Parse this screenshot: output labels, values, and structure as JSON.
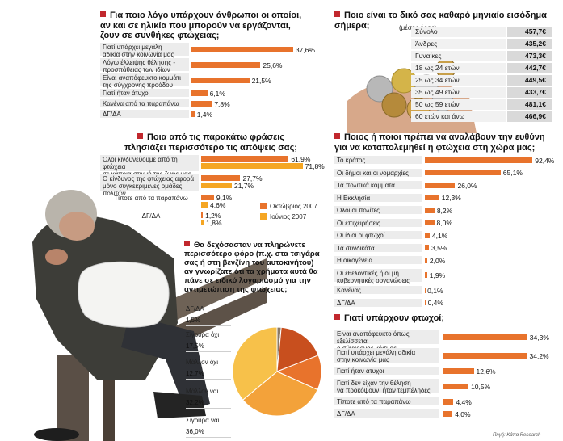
{
  "chart_data": [
    {
      "type": "bar",
      "title": "Για ποιο λόγο υπάρχουν άνθρωποι οι οποίοι,\nαν και σε ηλικία που μπορούν να εργάζονται,\nζουν σε συνθήκες φτώχειας;",
      "categories": [
        "Γιατί υπάρχει μεγάλη\nαδικία στην κοινωνία μας",
        "Λόγω έλλειψης θέλησης -\nπροσπάθειας των ιδίων",
        "Είναι αναπόφευκτο κομμάτι\nτης σύγχρονης προόδου",
        "Γιατί ήταν άτυχοι",
        "Κανένα από τα παραπάνω",
        "ΔΓ/ΔΑ"
      ],
      "values": [
        37.6,
        25.6,
        21.5,
        6.1,
        7.8,
        1.4
      ],
      "value_labels": [
        "37,6%",
        "25,6%",
        "21,5%",
        "6,1%",
        "7,8%",
        "1,4%"
      ]
    },
    {
      "type": "table",
      "title": "Ποιο είναι το δικό σας καθαρό μηνιαίο εισόδημα σήμερα;",
      "subtitle": "(μέσος όρος)",
      "rows": [
        [
          "Σύνολο",
          "457,7€"
        ],
        [
          "Άνδρες",
          "435,2€"
        ],
        [
          "Γυναίκες",
          "473,3€"
        ],
        [
          "18 ως 24 ετών",
          "442,7€"
        ],
        [
          "25 ως 34 ετών",
          "449,5€"
        ],
        [
          "35 ως 49 ετών",
          "433,7€"
        ],
        [
          "50 ως 59 ετών",
          "481,1€"
        ],
        [
          "60 ετών και άνω",
          "466,9€"
        ]
      ]
    },
    {
      "type": "bar",
      "title": "Ποια από τις παρακάτω φράσεις\nπλησιάζει περισσότερο τις απόψεις σας;",
      "categories": [
        "Όλοι κινδυνεύουμε από τη φτώχεια\nσε κάποια στιγμή της ζωής μας",
        "Ο κίνδυνος της φτώχειας αφορά\nμόνο συγκεκριμένες ομάδες πολιτών",
        "Τίποτε από τα παραπάνω",
        "ΔΓ/ΔΑ"
      ],
      "series": [
        {
          "name": "Οκτώβριος 2007",
          "values": [
            61.9,
            27.7,
            9.1,
            1.2
          ],
          "value_labels": [
            "61,9%",
            "27,7%",
            "9,1%",
            "1,2%"
          ],
          "color": "#e8732c"
        },
        {
          "name": "Ιούνιος 2007",
          "values": [
            71.8,
            21.7,
            4.6,
            1.8
          ],
          "value_labels": [
            "71,8%",
            "21,7%",
            "4,6%",
            "1,8%"
          ],
          "color": "#f5a623"
        }
      ]
    },
    {
      "type": "bar",
      "title": "Ποιος ή ποιοι πρέπει να αναλάβουν την ευθύνη\nγια να καταπολεμηθεί η φτώχεια στη χώρα μας;",
      "categories": [
        "Το κράτος",
        "Οι δήμοι και οι νομαρχίες",
        "Τα πολιτικά κόμματα",
        "Η Εκκλησία",
        "Όλοι οι πολίτες",
        "Οι επιχειρήσεις",
        "Οι ίδιοι οι φτωχοί",
        "Τα συνδικάτα",
        "Η οικογένεια",
        "Οι εθελοντικές ή οι μη\nκυβερνητικές οργανώσεις",
        "Κανένας",
        "ΔΓ/ΔΑ"
      ],
      "values": [
        92.4,
        65.1,
        26.0,
        12.3,
        8.2,
        8.0,
        4.1,
        3.5,
        2.0,
        1.9,
        0.1,
        0.4
      ],
      "value_labels": [
        "92,4%",
        "65,1%",
        "26,0%",
        "12,3%",
        "8,2%",
        "8,0%",
        "4,1%",
        "3,5%",
        "2,0%",
        "1,9%",
        "0,1%",
        "0,4%"
      ]
    },
    {
      "type": "pie",
      "title": "Θα δεχόσασταν να πληρώνετε\nπερισσότερο φόρο (π.χ. στα τσιγάρα\nσας ή στη βενζίνη του αυτοκινήτου)\nαν γνωρίζατε ότι τα χρήματα αυτά θα\nπάνε σε ειδικό λογαριασμό για την\nαντιμετώπιση της φτώχειας;",
      "categories": [
        "ΔΓ/ΔΑ",
        "Σίγουρα όχι",
        "Μάλλον όχι",
        "Μάλλον ναι",
        "Σίγουρα ναι"
      ],
      "values": [
        1.5,
        17.5,
        12.7,
        32.2,
        36.0
      ],
      "value_labels": [
        "1,5%",
        "17,5%",
        "12,7%",
        "32,2%",
        "36,0%"
      ],
      "colors": [
        "#8a7a66",
        "#c84f1e",
        "#e8732c",
        "#f3a23a",
        "#f7c14a"
      ]
    },
    {
      "type": "bar",
      "title": "Γιατί υπάρχουν φτωχοί;",
      "categories": [
        "Είναι αναπόφευκτο όπως εξελίσσεται\nο σύγχρονος κόσμος",
        "Γιατί υπάρχει μεγάλη αδικία\nστην κοινωνία μας",
        "Γιατί ήταν άτυχοι",
        "Γιατί δεν είχαν την θέληση\nνα προκόψουν, ήταν τεμπέληδες",
        "Τίποτε από τα παραπάνω",
        "ΔΓ/ΔΑ"
      ],
      "values": [
        34.3,
        34.2,
        12.6,
        10.5,
        4.4,
        4.0
      ],
      "value_labels": [
        "34,3%",
        "34,2%",
        "12,6%",
        "10,5%",
        "4,4%",
        "4,0%"
      ]
    }
  ],
  "source": "Πηγή: Κάπα Research"
}
